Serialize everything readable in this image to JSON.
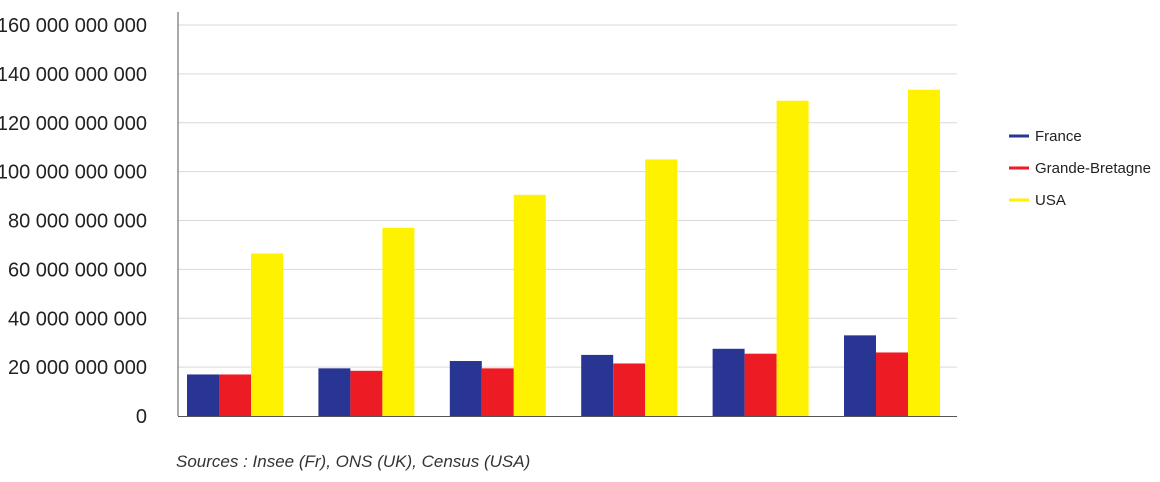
{
  "chart_data": {
    "type": "bar",
    "categories": [
      "",
      "",
      "",
      "",
      "",
      ""
    ],
    "series": [
      {
        "name": "France",
        "color": "#283593",
        "values": [
          17000000000,
          19500000000,
          22500000000,
          25000000000,
          27500000000,
          33000000000
        ]
      },
      {
        "name": "Grande-Bretagne",
        "color": "#ed1c24",
        "values": [
          17000000000,
          18500000000,
          19500000000,
          21500000000,
          25500000000,
          26000000000
        ]
      },
      {
        "name": "USA",
        "color": "#fff200",
        "values": [
          66500000000,
          77000000000,
          90500000000,
          105000000000,
          129000000000,
          133500000000
        ]
      }
    ],
    "yticks": [
      {
        "value": 0,
        "label": "0"
      },
      {
        "value": 20000000000,
        "label": "20 000 000 000"
      },
      {
        "value": 40000000000,
        "label": "40 000 000 000"
      },
      {
        "value": 60000000000,
        "label": "60 000 000 000"
      },
      {
        "value": 80000000000,
        "label": "80 000 000 000"
      },
      {
        "value": 100000000000,
        "label": "100 000 000 000"
      },
      {
        "value": 120000000000,
        "label": "120 000 000 000"
      },
      {
        "value": 140000000000,
        "label": "140 000 000 000"
      },
      {
        "value": 160000000000,
        "label": "160 000 000 000"
      }
    ],
    "ylim": [
      0,
      160000000000
    ],
    "grid": true,
    "legend_position": "right",
    "title": "",
    "xlabel": "",
    "ylabel": ""
  },
  "source_note": "Sources : Insee (Fr), ONS (UK), Census (USA)"
}
